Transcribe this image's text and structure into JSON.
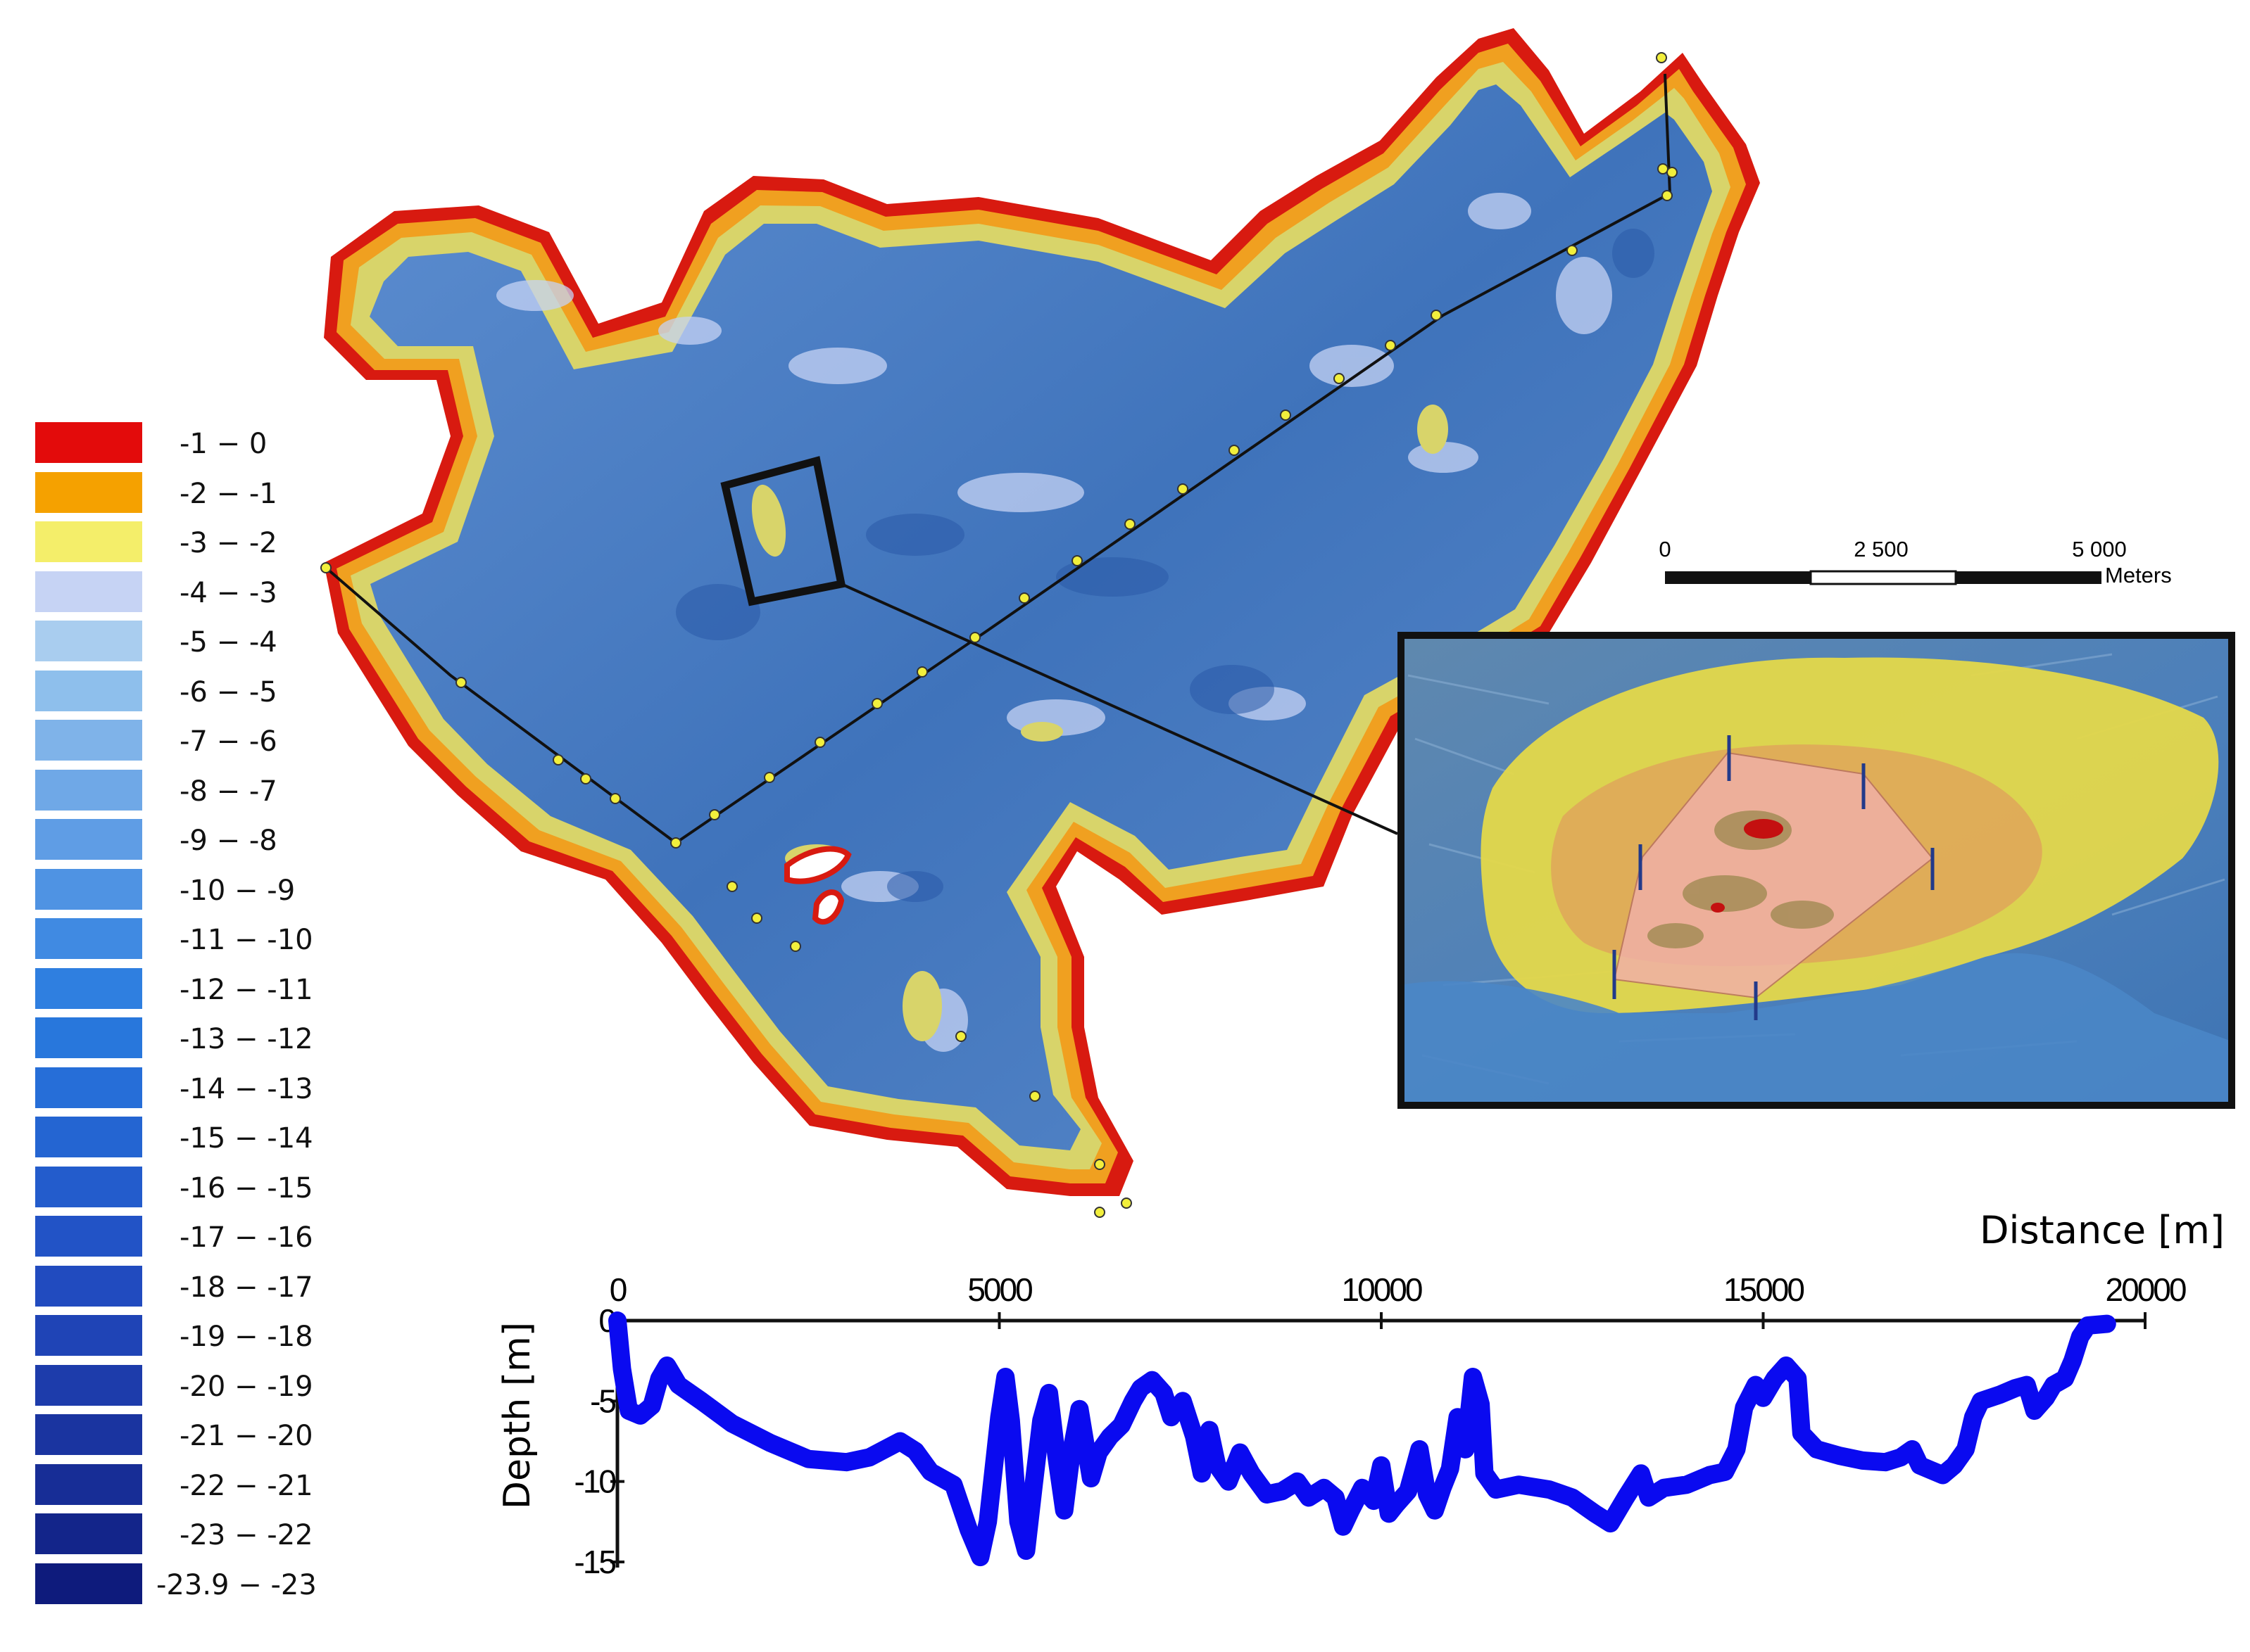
{
  "legend": {
    "items": [
      {
        "label": "-1 − 0",
        "color": "#e30b0b"
      },
      {
        "label": "-2 − -1",
        "color": "#f5a100"
      },
      {
        "label": "-3 − -2",
        "color": "#f4ee6a"
      },
      {
        "label": "-4 − -3",
        "color": "#c6d3f4"
      },
      {
        "label": "-5 − -4",
        "color": "#a9cdef"
      },
      {
        "label": "-6 − -5",
        "color": "#8ebfec"
      },
      {
        "label": "-7 − -6",
        "color": "#7fb3e9"
      },
      {
        "label": "-8 − -7",
        "color": "#6fa8e7"
      },
      {
        "label": "-9 − -8",
        "color": "#5f9de5"
      },
      {
        "label": "-10 − -9",
        "color": "#4f93e3"
      },
      {
        "label": "-11 − -10",
        "color": "#408ae2"
      },
      {
        "label": "-12 − -11",
        "color": "#2f7fe0"
      },
      {
        "label": "-13 − -12",
        "color": "#2877dc"
      },
      {
        "label": "-14 − -13",
        "color": "#266ed8"
      },
      {
        "label": "-15 − -14",
        "color": "#2465d2"
      },
      {
        "label": "-16 − -15",
        "color": "#235ccc"
      },
      {
        "label": "-17 − -16",
        "color": "#2253c6"
      },
      {
        "label": "-18 − -17",
        "color": "#214bbf"
      },
      {
        "label": "-19 − -18",
        "color": "#1f44b6"
      },
      {
        "label": "-20 − -19",
        "color": "#1d3cab"
      },
      {
        "label": "-21 − -20",
        "color": "#1a34a0"
      },
      {
        "label": "-22 − -21",
        "color": "#172d96"
      },
      {
        "label": "-23 − -22",
        "color": "#13258a"
      },
      {
        "label": "-23.9 − -23",
        "color": "#0e1b7c"
      }
    ]
  },
  "scalebar": {
    "ticks": [
      "0",
      "2 500",
      "5 000"
    ],
    "unit": "Meters"
  },
  "map": {
    "land_color": "#4a7fbf",
    "shore_red": "#d81a10",
    "shore_orange": "#f0a020",
    "shallow_yellow": "#d8d46a",
    "transect_color": "#111111",
    "marker_color": "#f2ef3c"
  },
  "inset": {
    "frame_color": "#111111",
    "survey_polygon_color": "#f0b0a6"
  },
  "chart_data": {
    "type": "line",
    "xlabel": "Distance [m]",
    "ylabel": "Depth [m]",
    "xlim": [
      0,
      20000
    ],
    "ylim": [
      -15,
      0
    ],
    "x_ticks": [
      "0",
      "5000",
      "10000",
      "15000",
      "20000"
    ],
    "y_ticks": [
      "0",
      "-5",
      "-10",
      "-15"
    ],
    "series": [
      {
        "color": "#0a0af0",
        "points": [
          [
            0,
            0
          ],
          [
            60,
            -3
          ],
          [
            150,
            -5.6
          ],
          [
            300,
            -5.9
          ],
          [
            450,
            -5.3
          ],
          [
            550,
            -3.6
          ],
          [
            650,
            -2.8
          ],
          [
            800,
            -4.0
          ],
          [
            1100,
            -5.0
          ],
          [
            1500,
            -6.4
          ],
          [
            2000,
            -7.6
          ],
          [
            2500,
            -8.6
          ],
          [
            3000,
            -8.8
          ],
          [
            3300,
            -8.5
          ],
          [
            3500,
            -8.0
          ],
          [
            3700,
            -7.5
          ],
          [
            3900,
            -8.1
          ],
          [
            4100,
            -9.4
          ],
          [
            4400,
            -10.2
          ],
          [
            4600,
            -13.0
          ],
          [
            4750,
            -14.7
          ],
          [
            4850,
            -12.5
          ],
          [
            5000,
            -6.0
          ],
          [
            5080,
            -3.5
          ],
          [
            5150,
            -6.2
          ],
          [
            5250,
            -12.5
          ],
          [
            5350,
            -14.3
          ],
          [
            5450,
            -10.2
          ],
          [
            5550,
            -6.2
          ],
          [
            5650,
            -4.5
          ],
          [
            5750,
            -8.5
          ],
          [
            5850,
            -11.8
          ],
          [
            5950,
            -8.0
          ],
          [
            6050,
            -5.5
          ],
          [
            6200,
            -9.8
          ],
          [
            6300,
            -8.2
          ],
          [
            6450,
            -7.2
          ],
          [
            6600,
            -6.5
          ],
          [
            6750,
            -5.0
          ],
          [
            6850,
            -4.2
          ],
          [
            7000,
            -3.7
          ],
          [
            7150,
            -4.5
          ],
          [
            7250,
            -6.0
          ],
          [
            7400,
            -5.0
          ],
          [
            7550,
            -7.2
          ],
          [
            7650,
            -9.5
          ],
          [
            7750,
            -6.8
          ],
          [
            7850,
            -9.0
          ],
          [
            8000,
            -10.0
          ],
          [
            8150,
            -8.2
          ],
          [
            8300,
            -9.5
          ],
          [
            8500,
            -10.8
          ],
          [
            8700,
            -10.6
          ],
          [
            8900,
            -10.0
          ],
          [
            9050,
            -11.0
          ],
          [
            9250,
            -10.4
          ],
          [
            9400,
            -11.0
          ],
          [
            9500,
            -12.8
          ],
          [
            9600,
            -11.8
          ],
          [
            9750,
            -10.4
          ],
          [
            9900,
            -11.2
          ],
          [
            10000,
            -9.0
          ],
          [
            10100,
            -12.0
          ],
          [
            10200,
            -11.4
          ],
          [
            10350,
            -10.6
          ],
          [
            10500,
            -8.0
          ],
          [
            10600,
            -10.8
          ],
          [
            10700,
            -11.8
          ],
          [
            10800,
            -10.4
          ],
          [
            10900,
            -9.2
          ],
          [
            11000,
            -6.0
          ],
          [
            11100,
            -8.0
          ],
          [
            11200,
            -3.5
          ],
          [
            11300,
            -5.2
          ],
          [
            11350,
            -9.5
          ],
          [
            11500,
            -10.5
          ],
          [
            11800,
            -10.2
          ],
          [
            12200,
            -10.5
          ],
          [
            12500,
            -11.0
          ],
          [
            12800,
            -12.0
          ],
          [
            13000,
            -12.6
          ],
          [
            13200,
            -11.0
          ],
          [
            13400,
            -9.5
          ],
          [
            13500,
            -11.0
          ],
          [
            13700,
            -10.4
          ],
          [
            14000,
            -10.2
          ],
          [
            14300,
            -9.6
          ],
          [
            14500,
            -9.4
          ],
          [
            14650,
            -8.0
          ],
          [
            14750,
            -5.4
          ],
          [
            14900,
            -4.0
          ],
          [
            15000,
            -4.8
          ],
          [
            15150,
            -3.6
          ],
          [
            15300,
            -2.8
          ],
          [
            15450,
            -3.6
          ],
          [
            15500,
            -7.0
          ],
          [
            15700,
            -8.0
          ],
          [
            16000,
            -8.4
          ],
          [
            16300,
            -8.7
          ],
          [
            16600,
            -8.8
          ],
          [
            16800,
            -8.5
          ],
          [
            16950,
            -8.0
          ],
          [
            17050,
            -9.0
          ],
          [
            17200,
            -9.3
          ],
          [
            17350,
            -9.6
          ],
          [
            17500,
            -9.0
          ],
          [
            17650,
            -8.0
          ],
          [
            17750,
            -6.0
          ],
          [
            17850,
            -5.0
          ],
          [
            18100,
            -4.6
          ],
          [
            18300,
            -4.2
          ],
          [
            18450,
            -4.0
          ],
          [
            18550,
            -5.6
          ],
          [
            18700,
            -4.8
          ],
          [
            18800,
            -4.0
          ],
          [
            18950,
            -3.6
          ],
          [
            19050,
            -2.5
          ],
          [
            19150,
            -1.0
          ],
          [
            19250,
            -0.3
          ],
          [
            19500,
            -0.2
          ]
        ]
      }
    ]
  }
}
